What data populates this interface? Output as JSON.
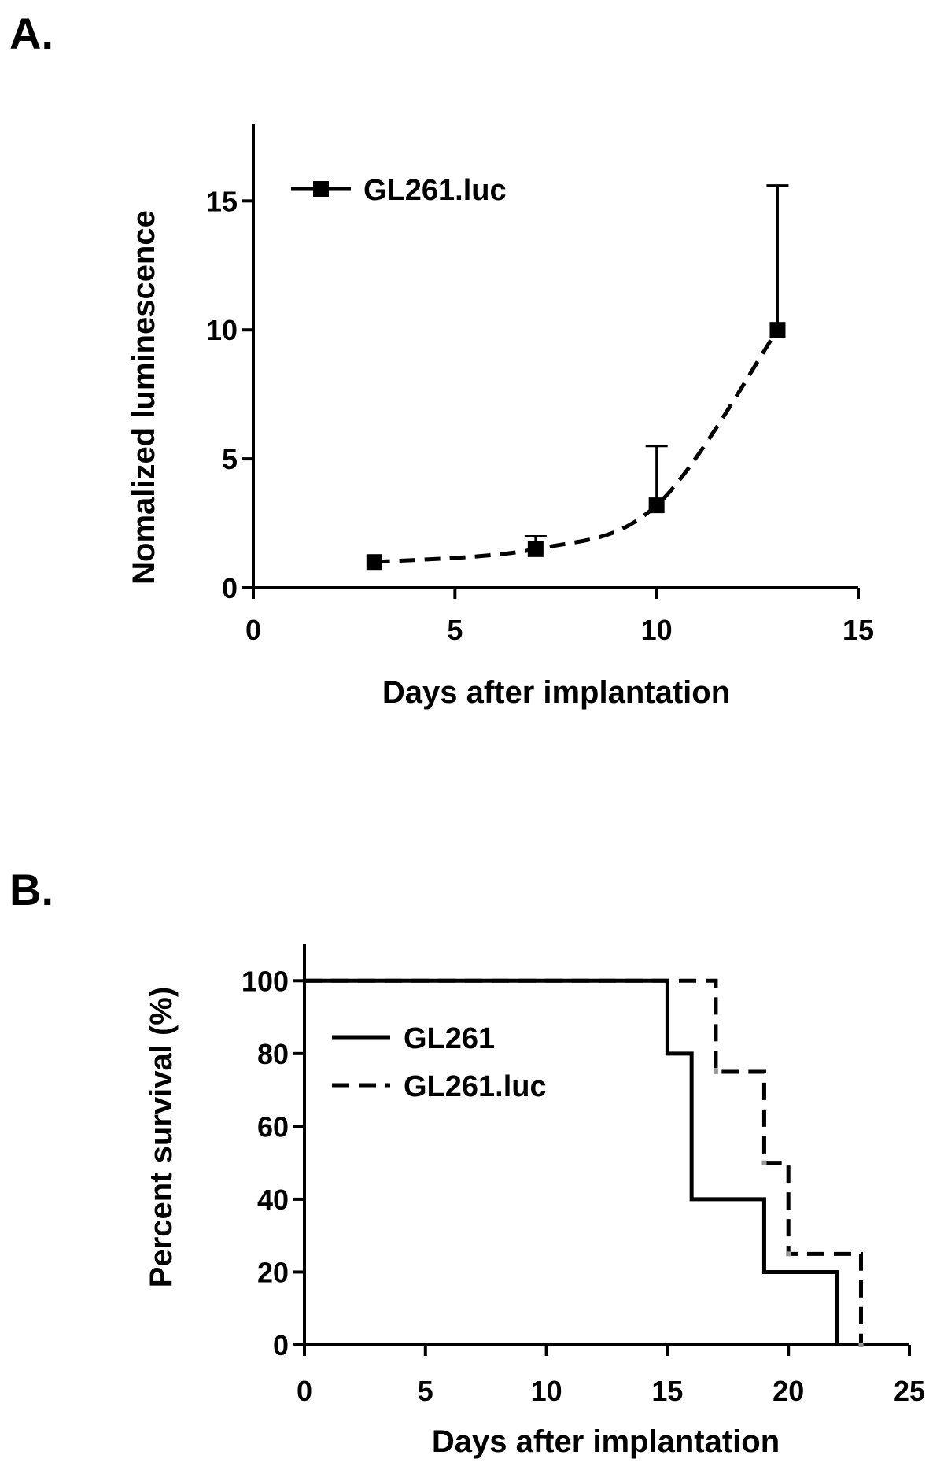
{
  "chart_data": [
    {
      "panel_label": "A.",
      "type": "line",
      "xlabel": "Days after implantation",
      "ylabel": "Nomalized luminescence",
      "xlim": [
        0,
        15
      ],
      "ylim": [
        0,
        18
      ],
      "xticks": [
        0,
        5,
        10,
        15
      ],
      "yticks": [
        0,
        5,
        10,
        15
      ],
      "legend_position": "top-left",
      "series": [
        {
          "name": "GL261.luc",
          "x": [
            3,
            7,
            10,
            13
          ],
          "y": [
            1.0,
            1.5,
            3.2,
            10.0
          ],
          "error_upper": [
            0.0,
            0.5,
            2.3,
            5.6
          ],
          "line_style": "dashed",
          "marker": "square",
          "color": "#000000"
        }
      ]
    },
    {
      "panel_label": "B.",
      "type": "line",
      "step": true,
      "xlabel": "Days after implantation",
      "ylabel": "Percent survival (%)",
      "xlim": [
        0,
        25
      ],
      "ylim": [
        0,
        110
      ],
      "xticks": [
        0,
        5,
        10,
        15,
        20,
        25
      ],
      "yticks": [
        0,
        20,
        40,
        60,
        80,
        100
      ],
      "legend_position": "top-left",
      "series": [
        {
          "name": "GL261",
          "x": [
            0,
            15,
            16,
            19,
            22
          ],
          "y": [
            100,
            80,
            40,
            20,
            0
          ],
          "line_style": "solid",
          "color": "#000000"
        },
        {
          "name": "GL261.luc",
          "x": [
            0,
            17,
            19,
            20,
            23
          ],
          "y": [
            100,
            75,
            50,
            25,
            0
          ],
          "line_style": "dashed",
          "color": "#000000",
          "censor_color": "#9a9a9a"
        }
      ]
    }
  ]
}
